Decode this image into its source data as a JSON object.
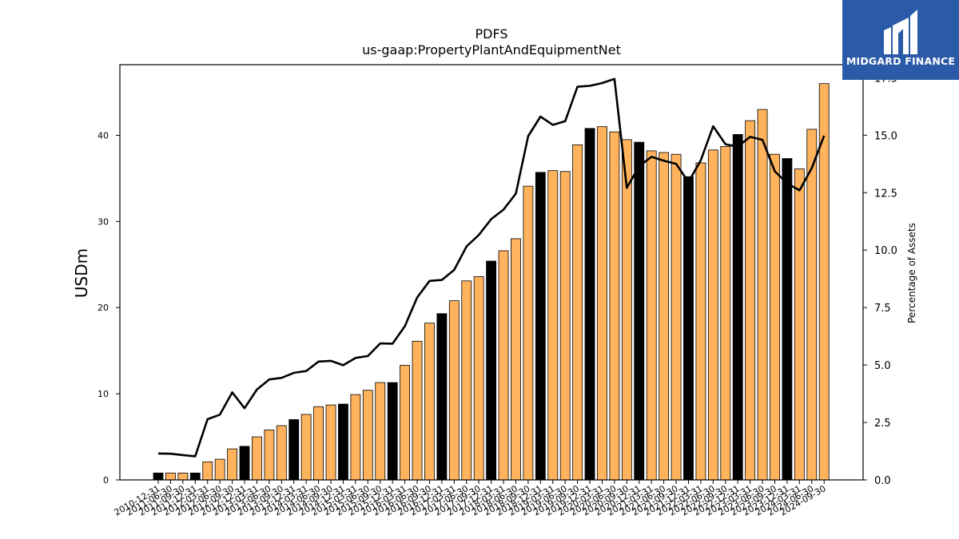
{
  "chart_data": {
    "type": "bar+line",
    "title": "PDFS",
    "subtitle": "us-gaap:PropertyPlantAndEquipmentNet",
    "ylabel": "USDm",
    "y2label": "Percentage of Assets",
    "ylim": [
      0,
      48.2
    ],
    "y2lim": [
      0,
      18.07
    ],
    "yticks": [
      0,
      10,
      20,
      30,
      40
    ],
    "y2ticks": [
      "0.0",
      "2.5",
      "5.0",
      "7.5",
      "10.0",
      "12.5",
      "15.0",
      "17.5"
    ],
    "grid": false,
    "categories": [
      "2010-12-31",
      "2011-06-30",
      "2011-09-30",
      "2011-12-31",
      "2012-03-31",
      "2012-06-30",
      "2012-09-30",
      "2012-12-31",
      "2013-03-31",
      "2013-06-30",
      "2013-09-30",
      "2013-12-31",
      "2014-03-31",
      "2014-06-30",
      "2014-09-30",
      "2014-12-31",
      "2015-03-31",
      "2015-06-30",
      "2015-09-30",
      "2015-12-31",
      "2016-03-31",
      "2016-06-30",
      "2016-09-30",
      "2016-12-31",
      "2017-03-31",
      "2017-06-30",
      "2017-09-30",
      "2017-12-31",
      "2018-03-31",
      "2018-06-30",
      "2018-09-30",
      "2018-12-31",
      "2019-03-31",
      "2019-06-30",
      "2019-09-30",
      "2019-12-31",
      "2020-03-31",
      "2020-06-30",
      "2020-09-30",
      "2020-12-31",
      "2021-03-31",
      "2021-06-30",
      "2021-09-30",
      "2021-12-31",
      "2022-03-31",
      "2022-06-30",
      "2022-09-30",
      "2022-12-31",
      "2023-03-31",
      "2023-06-30",
      "2023-09-30",
      "2023-12-31",
      "2024-03-31",
      "2024-06-30",
      "2024-09-30"
    ],
    "series": [
      {
        "type": "bar",
        "values": [
          0.8,
          0.8,
          0.8,
          0.8,
          2.1,
          2.4,
          3.6,
          3.9,
          5.0,
          5.8,
          6.3,
          7.0,
          7.6,
          8.5,
          8.7,
          8.8,
          9.9,
          10.4,
          11.3,
          11.3,
          13.3,
          16.1,
          18.2,
          19.3,
          20.8,
          23.1,
          23.6,
          25.4,
          26.6,
          28.0,
          34.1,
          35.7,
          35.9,
          35.8,
          38.9,
          40.8,
          41.0,
          40.4,
          39.5,
          39.2,
          38.2,
          38.0,
          37.8,
          35.2,
          36.8,
          38.3,
          38.7,
          40.1,
          41.7,
          43.0,
          37.8,
          37.3,
          36.1,
          40.7,
          46.0
        ],
        "colors": [
          "#000000",
          "#ffb35c",
          "#ffb35c",
          "#000000",
          "#ffb35c",
          "#ffb35c",
          "#ffb35c",
          "#000000",
          "#ffb35c",
          "#ffb35c",
          "#ffb35c",
          "#000000",
          "#ffb35c",
          "#ffb35c",
          "#ffb35c",
          "#000000",
          "#ffb35c",
          "#ffb35c",
          "#ffb35c",
          "#000000",
          "#ffb35c",
          "#ffb35c",
          "#ffb35c",
          "#000000",
          "#ffb35c",
          "#ffb35c",
          "#ffb35c",
          "#000000",
          "#ffb35c",
          "#ffb35c",
          "#ffb35c",
          "#000000",
          "#ffb35c",
          "#ffb35c",
          "#ffb35c",
          "#000000",
          "#ffb35c",
          "#ffb35c",
          "#ffb35c",
          "#000000",
          "#ffb35c",
          "#ffb35c",
          "#ffb35c",
          "#000000",
          "#ffb35c",
          "#ffb35c",
          "#ffb35c",
          "#000000",
          "#ffb35c",
          "#ffb35c",
          "#ffb35c",
          "#000000",
          "#ffb35c",
          "#ffb35c",
          "#ffb35c"
        ]
      },
      {
        "type": "line",
        "axis": "right",
        "color": "#000000",
        "values": [
          1.15,
          1.14,
          1.08,
          1.03,
          2.64,
          2.84,
          3.81,
          3.12,
          3.93,
          4.37,
          4.44,
          4.66,
          4.74,
          5.15,
          5.18,
          4.99,
          5.31,
          5.39,
          5.94,
          5.93,
          6.69,
          7.94,
          8.66,
          8.7,
          9.14,
          10.16,
          10.66,
          11.35,
          11.76,
          12.46,
          14.96,
          15.81,
          15.45,
          15.61,
          17.11,
          17.15,
          17.27,
          17.45,
          12.71,
          13.65,
          14.06,
          13.89,
          13.75,
          12.97,
          13.91,
          15.39,
          14.61,
          14.5,
          14.93,
          14.8,
          13.43,
          12.91,
          12.6,
          13.57,
          14.98
        ]
      }
    ]
  },
  "logo": {
    "text": "MIDGARD FINANCE",
    "color": "#2b5aa8"
  }
}
